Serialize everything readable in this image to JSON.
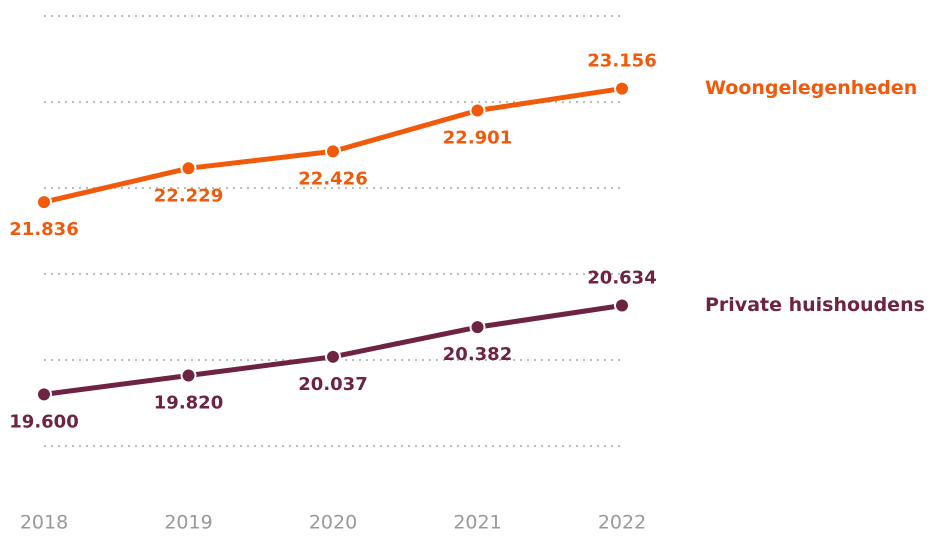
{
  "chart_data": {
    "type": "line",
    "categories": [
      "2018",
      "2019",
      "2020",
      "2021",
      "2022"
    ],
    "series": [
      {
        "name": "Woongelegenheden",
        "color": "#f15a0b",
        "values": [
          21836,
          22229,
          22426,
          22901,
          23156
        ],
        "value_labels": [
          "21.836",
          "22.229",
          "22.426",
          "22.901",
          "23.156"
        ]
      },
      {
        "name": "Private huishoudens",
        "color": "#6e2342",
        "values": [
          19600,
          19820,
          20037,
          20382,
          20634
        ],
        "value_labels": [
          "19.600",
          "19.820",
          "20.037",
          "20.382",
          "20.634"
        ]
      }
    ],
    "ylim": [
      19000,
      24000
    ],
    "yticks": [
      19000,
      20000,
      21000,
      22000,
      23000,
      24000
    ],
    "grid": true
  }
}
